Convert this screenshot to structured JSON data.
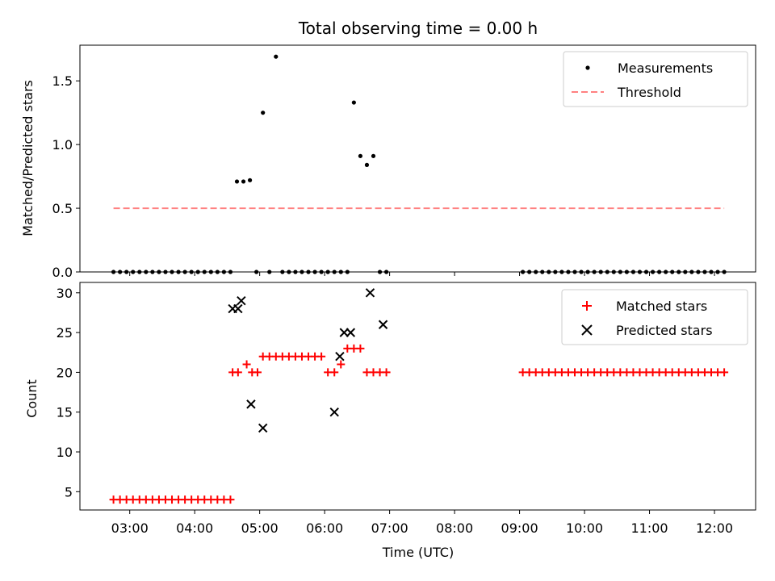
{
  "chart_data": [
    {
      "type": "scatter",
      "title": "Total observing time = 0.00 h",
      "xlabel": "",
      "ylabel": "Matched/Predicted stars",
      "ylim": [
        0,
        1.78
      ],
      "yticks": [
        "0.0",
        "0.5",
        "1.0",
        "1.5"
      ],
      "ytick_values": [
        0,
        0.5,
        1.0,
        1.5
      ],
      "legend_position": "top-right",
      "series": [
        {
          "name": "Measurements",
          "color": "#000000",
          "marker": "dot",
          "x": [
            "02:45",
            "02:51",
            "02:57",
            "03:03",
            "03:09",
            "03:15",
            "03:21",
            "03:27",
            "03:33",
            "03:39",
            "03:45",
            "03:51",
            "03:57",
            "04:03",
            "04:09",
            "04:15",
            "04:21",
            "04:27",
            "04:33",
            "04:39",
            "04:45",
            "04:51",
            "04:57",
            "05:03",
            "05:09",
            "05:15",
            "05:21",
            "05:27",
            "05:33",
            "05:39",
            "05:45",
            "05:51",
            "05:57",
            "06:03",
            "06:09",
            "06:15",
            "06:21",
            "06:27",
            "06:33",
            "06:39",
            "06:45",
            "06:51",
            "06:57",
            "09:03",
            "09:09",
            "09:15",
            "09:21",
            "09:27",
            "09:33",
            "09:39",
            "09:45",
            "09:51",
            "09:57",
            "10:03",
            "10:09",
            "10:15",
            "10:21",
            "10:27",
            "10:33",
            "10:39",
            "10:45",
            "10:51",
            "10:57",
            "11:03",
            "11:09",
            "11:15",
            "11:21",
            "11:27",
            "11:33",
            "11:39",
            "11:45",
            "11:51",
            "11:57",
            "12:03",
            "12:09"
          ],
          "y": [
            0,
            0,
            0,
            0,
            0,
            0,
            0,
            0,
            0,
            0,
            0,
            0,
            0,
            0,
            0,
            0,
            0,
            0,
            0,
            0.71,
            0.71,
            0.72,
            0,
            1.25,
            0,
            1.69,
            0,
            0,
            0,
            0,
            0,
            0,
            0,
            0,
            0,
            0,
            0,
            1.33,
            0.91,
            0.84,
            0.91,
            0,
            0,
            0,
            0,
            0,
            0,
            0,
            0,
            0,
            0,
            0,
            0,
            0,
            0,
            0,
            0,
            0,
            0,
            0,
            0,
            0,
            0,
            0,
            0,
            0,
            0,
            0,
            0,
            0,
            0,
            0,
            0,
            0,
            0
          ]
        },
        {
          "name": "Threshold",
          "color": "#ff8080",
          "style": "dashed",
          "x": [
            "02:45",
            "12:09"
          ],
          "y": [
            0.5,
            0.5
          ]
        }
      ]
    },
    {
      "type": "scatter",
      "title": "",
      "xlabel": "Time (UTC)",
      "ylabel": "Count",
      "ylim": [
        2.7,
        31.3
      ],
      "yticks": [
        "5",
        "10",
        "15",
        "20",
        "25",
        "30"
      ],
      "ytick_values": [
        5,
        10,
        15,
        20,
        25,
        30
      ],
      "xticks": [
        "03:00",
        "04:00",
        "05:00",
        "06:00",
        "07:00",
        "08:00",
        "09:00",
        "10:00",
        "11:00",
        "12:00"
      ],
      "xlim": [
        "02:14",
        "12:38"
      ],
      "legend_position": "top-right",
      "series": [
        {
          "name": "Matched stars",
          "color": "#ff0000",
          "marker": "plus",
          "x": [
            "02:45",
            "02:51",
            "02:57",
            "03:03",
            "03:09",
            "03:15",
            "03:21",
            "03:27",
            "03:33",
            "03:39",
            "03:45",
            "03:51",
            "03:57",
            "04:03",
            "04:09",
            "04:15",
            "04:21",
            "04:27",
            "04:33",
            "04:35",
            "04:40",
            "04:48",
            "04:53",
            "04:58",
            "05:03",
            "05:09",
            "05:15",
            "05:21",
            "05:27",
            "05:33",
            "05:39",
            "05:45",
            "05:51",
            "05:57",
            "06:03",
            "06:09",
            "06:15",
            "06:21",
            "06:27",
            "06:33",
            "06:39",
            "06:45",
            "06:51",
            "06:57",
            "09:03",
            "09:09",
            "09:15",
            "09:21",
            "09:27",
            "09:33",
            "09:39",
            "09:45",
            "09:51",
            "09:57",
            "10:03",
            "10:09",
            "10:15",
            "10:21",
            "10:27",
            "10:33",
            "10:39",
            "10:45",
            "10:51",
            "10:57",
            "11:03",
            "11:09",
            "11:15",
            "11:21",
            "11:27",
            "11:33",
            "11:39",
            "11:45",
            "11:51",
            "11:57",
            "12:03",
            "12:09"
          ],
          "y": [
            4,
            4,
            4,
            4,
            4,
            4,
            4,
            4,
            4,
            4,
            4,
            4,
            4,
            4,
            4,
            4,
            4,
            4,
            4,
            20,
            20,
            21,
            20,
            20,
            22,
            22,
            22,
            22,
            22,
            22,
            22,
            22,
            22,
            22,
            20,
            20,
            21,
            23,
            23,
            23,
            20,
            20,
            20,
            20,
            20,
            20,
            20,
            20,
            20,
            20,
            20,
            20,
            20,
            20,
            20,
            20,
            20,
            20,
            20,
            20,
            20,
            20,
            20,
            20,
            20,
            20,
            20,
            20,
            20,
            20,
            20,
            20,
            20,
            20,
            20,
            20
          ]
        },
        {
          "name": "Predicted stars",
          "color": "#000000",
          "marker": "x",
          "x": [
            "04:35",
            "04:40",
            "04:43",
            "04:52",
            "05:03",
            "06:09",
            "06:14",
            "06:18",
            "06:24",
            "06:42",
            "06:54"
          ],
          "y": [
            28,
            28,
            29,
            16,
            13,
            15,
            22,
            25,
            25,
            30,
            26
          ]
        }
      ]
    }
  ]
}
